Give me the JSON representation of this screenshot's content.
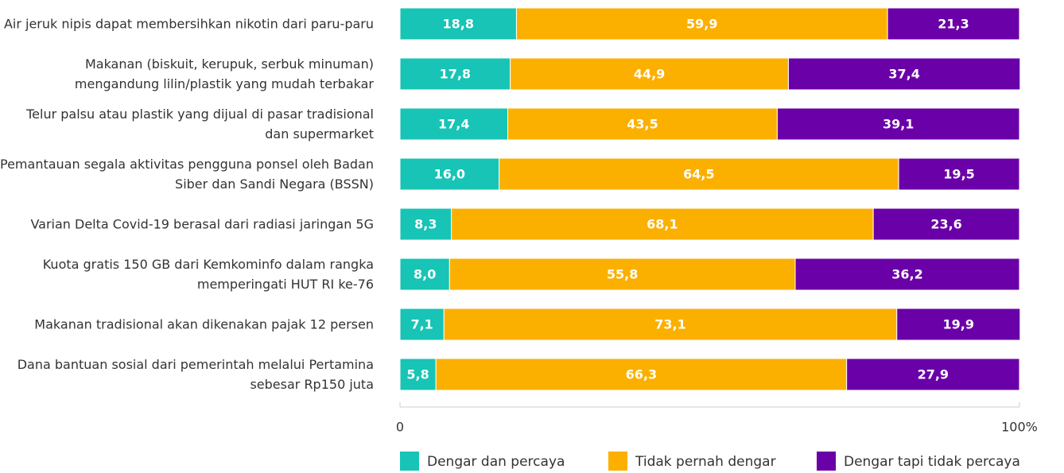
{
  "chart_data": {
    "type": "stacked_barh",
    "categories": [
      "Air jeruk nipis dapat membersihkan nikotin dari paru-paru",
      "Makanan (biskuit, kerupuk, serbuk minuman) mengandung lilin/plastik yang mudah terbakar",
      "Telur palsu atau plastik yang dijual di pasar tradisional dan supermarket",
      "Pemantauan segala aktivitas pengguna ponsel oleh Badan Siber dan Sandi Negara (BSSN)",
      "Varian Delta Covid-19 berasal dari radiasi jaringan 5G",
      "Kuota gratis 150 GB dari Kemkominfo dalam rangka memperingati HUT RI ke-76",
      "Makanan tradisional akan dikenakan pajak 12 persen",
      "Dana bantuan sosial dari pemerintah melalui Pertamina sebesar Rp150 juta"
    ],
    "series": [
      {
        "name": "Dengar dan percaya",
        "color": "#17c4b5",
        "values": [
          18.8,
          17.8,
          17.4,
          16.0,
          8.3,
          8.0,
          7.1,
          5.8
        ],
        "value_labels": [
          "18,8",
          "17,8",
          "17,4",
          "16,0",
          "8,3",
          "8,0",
          "7,1",
          "5,8"
        ]
      },
      {
        "name": "Tidak pernah dengar",
        "color": "#fbb000",
        "values": [
          59.9,
          44.9,
          43.5,
          64.5,
          68.1,
          55.8,
          73.1,
          66.3
        ],
        "value_labels": [
          "59,9",
          "44,9",
          "43,5",
          "64,5",
          "68,1",
          "55,8",
          "73,1",
          "66,3"
        ]
      },
      {
        "name": "Dengar tapi tidak percaya",
        "color": "#6a00a8",
        "values": [
          21.3,
          37.4,
          39.1,
          19.5,
          23.6,
          36.2,
          19.9,
          27.9
        ],
        "value_labels": [
          "21,3",
          "37,4",
          "39,1",
          "19,5",
          "23,6",
          "36,2",
          "19,9",
          "27,9"
        ]
      }
    ],
    "xlim": [
      0,
      100
    ],
    "xticks": [
      0,
      {
        "value": 100,
        "label": "100%"
      }
    ]
  }
}
